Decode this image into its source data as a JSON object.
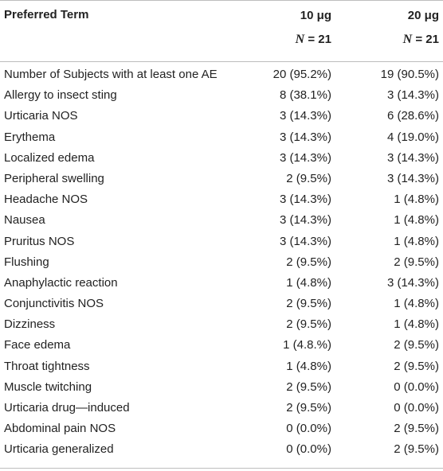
{
  "header": {
    "term": "Preferred Term",
    "col1_dose": "10 μg",
    "col1_n_label": "N",
    "col1_n_value": "= 21",
    "col2_dose": "20 μg",
    "col2_n_label": "N",
    "col2_n_value": "= 21"
  },
  "rows": [
    {
      "term": "Number of Subjects with at least one AE",
      "v1": "20 (95.2%)",
      "v2": "19 (90.5%)"
    },
    {
      "term": "Allergy to insect sting",
      "v1": "8 (38.1%)",
      "v2": "3 (14.3%)"
    },
    {
      "term": "Urticaria NOS",
      "v1": "3 (14.3%)",
      "v2": "6 (28.6%)"
    },
    {
      "term": "Erythema",
      "v1": "3 (14.3%)",
      "v2": "4 (19.0%)"
    },
    {
      "term": "Localized edema",
      "v1": "3 (14.3%)",
      "v2": "3 (14.3%)"
    },
    {
      "term": "Peripheral swelling",
      "v1": "2 (9.5%)",
      "v2": "3 (14.3%)"
    },
    {
      "term": "Headache NOS",
      "v1": "3 (14.3%)",
      "v2": "1 (4.8%)"
    },
    {
      "term": "Nausea",
      "v1": "3 (14.3%)",
      "v2": "1 (4.8%)"
    },
    {
      "term": "Pruritus NOS",
      "v1": "3 (14.3%)",
      "v2": "1 (4.8%)"
    },
    {
      "term": "Flushing",
      "v1": "2 (9.5%)",
      "v2": "2 (9.5%)"
    },
    {
      "term": "Anaphylactic reaction",
      "v1": "1 (4.8%)",
      "v2": "3 (14.3%)"
    },
    {
      "term": "Conjunctivitis NOS",
      "v1": "2 (9.5%)",
      "v2": "1 (4.8%)"
    },
    {
      "term": "Dizziness",
      "v1": "2 (9.5%)",
      "v2": "1 (4.8%)"
    },
    {
      "term": "Face edema",
      "v1": "1 (4.8.%)",
      "v2": "2 (9.5%)"
    },
    {
      "term": "Throat tightness",
      "v1": "1 (4.8%)",
      "v2": "2 (9.5%)"
    },
    {
      "term": "Muscle twitching",
      "v1": "2 (9.5%)",
      "v2": "0 (0.0%)"
    },
    {
      "term": "Urticaria drug—induced",
      "v1": "2 (9.5%)",
      "v2": "0 (0.0%)"
    },
    {
      "term": "Abdominal pain NOS",
      "v1": "0 (0.0%)",
      "v2": "2 (9.5%)"
    },
    {
      "term": "Urticaria generalized",
      "v1": "0 (0.0%)",
      "v2": "2 (9.5%)"
    }
  ]
}
